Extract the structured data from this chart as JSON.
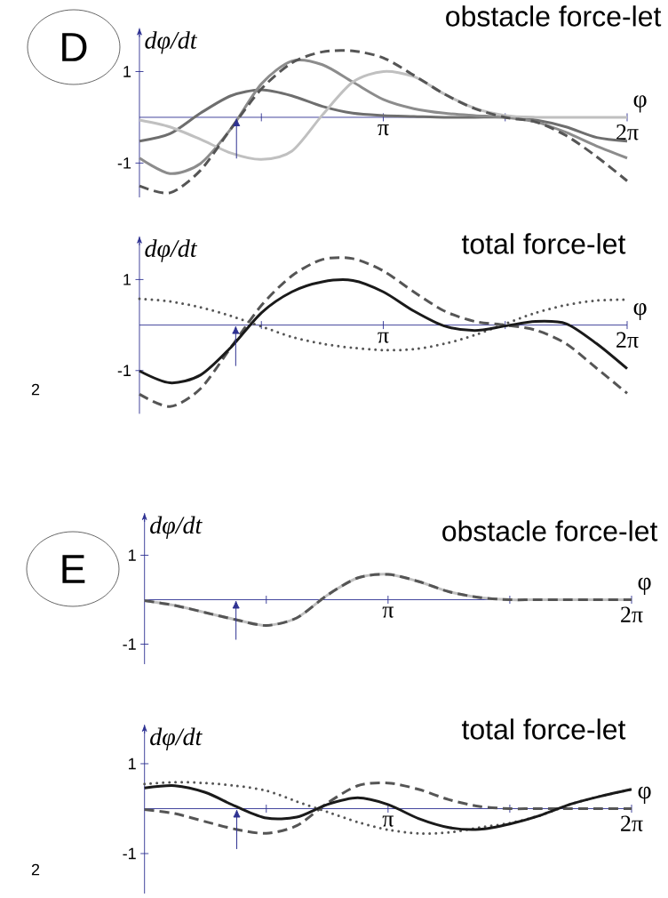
{
  "chart_data": [
    {
      "type": "line",
      "title": "obstacle force-let",
      "xlabel": "φ",
      "ylabel": "dφ/dt",
      "annotations": [
        "D"
      ],
      "x": [
        0,
        0.3927,
        0.7854,
        1.1781,
        1.5708,
        1.9635,
        2.3562,
        2.7489,
        3.1416,
        3.5343,
        3.927,
        4.3197,
        4.7124,
        5.1051,
        5.4978,
        5.8905,
        6.2832
      ],
      "xlim": [
        0,
        6.2832
      ],
      "ylim": [
        -1.75,
        1.95
      ],
      "xticks": [
        {
          "value": 1.5708,
          "label": null
        },
        {
          "value": 3.1416,
          "label": "π"
        },
        {
          "value": 4.7124,
          "label": null
        },
        {
          "value": 6.2832,
          "label": "2π"
        }
      ],
      "yticks": [
        1,
        -1
      ],
      "ref_lines": [
        {
          "axis": "x",
          "value": 1.25,
          "color": "#2e3192"
        }
      ],
      "series": [
        {
          "color": "#6e6e6e",
          "line_style": "solid",
          "values": [
            -0.52,
            -0.36,
            0.09,
            0.47,
            0.6,
            0.47,
            0.24,
            0.09,
            0.04,
            0.02,
            0,
            0,
            0,
            -0.06,
            -0.21,
            -0.44,
            -0.52
          ]
        },
        {
          "color": "#8c8c8c",
          "line_style": "solid",
          "values": [
            -0.89,
            -1.23,
            -1.01,
            -0.25,
            0.73,
            1.23,
            1.15,
            0.77,
            0.39,
            0.19,
            0.09,
            0.04,
            0,
            -0.1,
            -0.33,
            -0.63,
            -0.89
          ]
        },
        {
          "color": "#c0c0c0",
          "line_style": "solid",
          "values": [
            -0.06,
            -0.21,
            -0.48,
            -0.78,
            -0.92,
            -0.74,
            0.05,
            0.77,
            1.0,
            0.89,
            0.51,
            0.2,
            0.04,
            0,
            0,
            0,
            0
          ]
        },
        {
          "color": "#555555",
          "line_style": "dashed",
          "values": [
            -1.5,
            -1.65,
            -1.16,
            -0.25,
            0.62,
            1.19,
            1.43,
            1.45,
            1.3,
            0.92,
            0.51,
            0.19,
            0,
            -0.1,
            -0.4,
            -0.86,
            -1.39
          ]
        }
      ]
    },
    {
      "type": "line",
      "title": "total force-let",
      "xlabel": "φ",
      "ylabel": "dφ/dt",
      "annotations": [
        "2"
      ],
      "x": [
        0,
        0.3927,
        0.7854,
        1.1781,
        1.5708,
        1.9635,
        2.3562,
        2.7489,
        3.1416,
        3.5343,
        3.927,
        4.3197,
        4.7124,
        5.1051,
        5.4978,
        5.8905,
        6.2832
      ],
      "xlim": [
        0,
        6.2832
      ],
      "ylim": [
        -1.95,
        1.95
      ],
      "xticks": [
        {
          "value": 1.5708,
          "label": null
        },
        {
          "value": 3.1416,
          "label": "π"
        },
        {
          "value": 4.7124,
          "label": null
        },
        {
          "value": 6.2832,
          "label": "2π"
        }
      ],
      "yticks": [
        1,
        -1
      ],
      "ref_lines": [
        {
          "axis": "x",
          "value": 1.24,
          "color": "#2e3192"
        }
      ],
      "series": [
        {
          "color": "#555555",
          "line_style": "dashed",
          "values": [
            -1.52,
            -1.79,
            -1.4,
            -0.49,
            0.43,
            1.08,
            1.44,
            1.46,
            1.19,
            0.73,
            0.31,
            0.08,
            0,
            -0.11,
            -0.41,
            -0.95,
            -1.5
          ]
        },
        {
          "color": "#555555",
          "line_style": "dotted",
          "values": [
            0.58,
            0.52,
            0.39,
            0.2,
            -0.03,
            -0.26,
            -0.41,
            -0.5,
            -0.55,
            -0.53,
            -0.41,
            -0.22,
            0.03,
            0.27,
            0.44,
            0.54,
            0.56
          ]
        },
        {
          "color": "#1a1a1a",
          "line_style": "solid",
          "values": [
            -1.01,
            -1.27,
            -1.1,
            -0.49,
            0.27,
            0.73,
            0.95,
            0.98,
            0.73,
            0.31,
            -0.02,
            -0.12,
            -0.02,
            0.08,
            0.03,
            -0.41,
            -0.96
          ]
        }
      ]
    },
    {
      "type": "line",
      "title": "obstacle force-let",
      "xlabel": "φ",
      "ylabel": "dφ/dt",
      "annotations": [
        "E"
      ],
      "x": [
        0,
        0.3927,
        0.7854,
        1.1781,
        1.5708,
        1.9635,
        2.3562,
        2.7489,
        3.1416,
        3.5343,
        3.927,
        4.3197,
        4.7124,
        5.1051,
        5.4978,
        5.8905,
        6.2832
      ],
      "xlim": [
        0,
        6.2832
      ],
      "ylim": [
        -1.45,
        1.95
      ],
      "xticks": [
        {
          "value": 1.5708,
          "label": null
        },
        {
          "value": 3.1416,
          "label": "π"
        },
        {
          "value": 4.7124,
          "label": null
        },
        {
          "value": 6.2832,
          "label": "2π"
        }
      ],
      "yticks": [
        1,
        -1
      ],
      "ref_lines": [
        {
          "axis": "x",
          "value": 1.18,
          "color": "#2e3192"
        }
      ],
      "series": [
        {
          "color": "#c0c0c0",
          "line_style": "solid",
          "values": [
            -0.02,
            -0.13,
            -0.29,
            -0.45,
            -0.58,
            -0.41,
            0.1,
            0.49,
            0.57,
            0.41,
            0.18,
            0.05,
            0,
            0,
            0,
            0,
            0
          ]
        },
        {
          "color": "#555555",
          "line_style": "dashed",
          "values": [
            -0.02,
            -0.13,
            -0.29,
            -0.45,
            -0.58,
            -0.41,
            0.1,
            0.49,
            0.57,
            0.41,
            0.18,
            0.05,
            0,
            0,
            0,
            0,
            0
          ]
        }
      ]
    },
    {
      "type": "line",
      "title": "total force-let",
      "xlabel": "φ",
      "ylabel": "dφ/dt",
      "annotations": [
        "2"
      ],
      "x": [
        0,
        0.3927,
        0.7854,
        1.1781,
        1.5708,
        1.9635,
        2.3562,
        2.7489,
        3.1416,
        3.5343,
        3.927,
        4.3197,
        4.7124,
        5.1051,
        5.4978,
        5.8905,
        6.2832
      ],
      "xlim": [
        0,
        6.2832
      ],
      "ylim": [
        -1.89,
        1.87
      ],
      "xticks": [
        {
          "value": 1.5708,
          "label": null
        },
        {
          "value": 3.1416,
          "label": "π"
        },
        {
          "value": 4.7124,
          "label": null
        },
        {
          "value": 6.2832,
          "label": "2π"
        }
      ],
      "yticks": [
        1,
        -1
      ],
      "ref_lines": [
        {
          "axis": "x",
          "value": 1.19,
          "color": "#2e3192"
        }
      ],
      "series": [
        {
          "color": "#555555",
          "line_style": "dashed",
          "values": [
            -0.02,
            -0.11,
            -0.29,
            -0.46,
            -0.55,
            -0.38,
            0.12,
            0.51,
            0.57,
            0.43,
            0.2,
            0.05,
            0,
            0,
            0,
            0,
            0
          ]
        },
        {
          "color": "#555555",
          "line_style": "dotted",
          "values": [
            0.55,
            0.59,
            0.57,
            0.51,
            0.4,
            0.16,
            -0.07,
            -0.3,
            -0.47,
            -0.55,
            -0.53,
            -0.42,
            -0.32,
            -0.15,
            0.1,
            0.28,
            0.43
          ]
        },
        {
          "color": "#1a1a1a",
          "line_style": "solid",
          "values": [
            0.46,
            0.51,
            0.36,
            0.05,
            -0.21,
            -0.19,
            0.09,
            0.24,
            0.09,
            -0.22,
            -0.42,
            -0.46,
            -0.34,
            -0.15,
            0.1,
            0.28,
            0.43
          ]
        }
      ]
    }
  ]
}
